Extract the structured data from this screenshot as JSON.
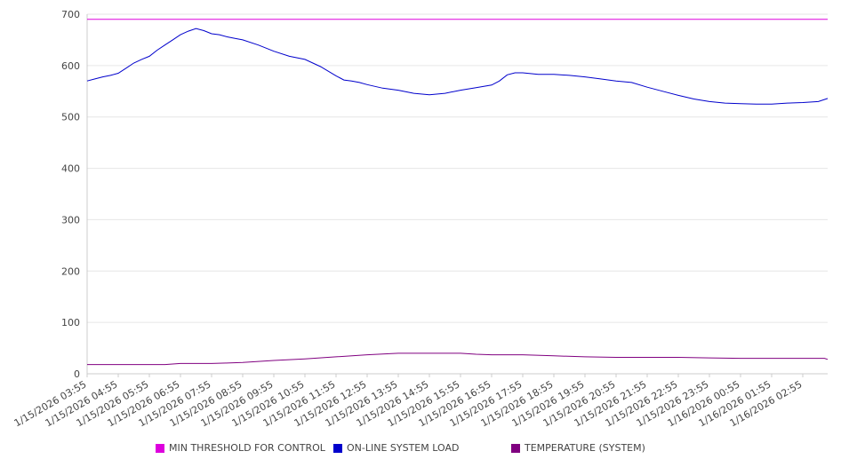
{
  "chart_data": {
    "type": "line",
    "ylim": [
      0,
      700
    ],
    "yticks": [
      0,
      100,
      200,
      300,
      400,
      500,
      600,
      700
    ],
    "x_tick_labels": [
      "1/15/2026 03:55",
      "1/15/2026 04:55",
      "1/15/2026 05:55",
      "1/15/2026 06:55",
      "1/15/2026 07:55",
      "1/15/2026 08:55",
      "1/15/2026 09:55",
      "1/15/2026 10:55",
      "1/15/2026 11:55",
      "1/15/2026 12:55",
      "1/15/2026 13:55",
      "1/15/2026 14:55",
      "1/15/2026 15:55",
      "1/15/2026 16:55",
      "1/15/2026 17:55",
      "1/15/2026 18:55",
      "1/15/2026 19:55",
      "1/15/2026 20:55",
      "1/15/2026 21:55",
      "1/15/2026 22:55",
      "1/15/2026 23:55",
      "1/16/2026 00:55",
      "1/16/2026 01:55",
      "1/16/2026 02:55"
    ],
    "x_range_hours": [
      0,
      23.8
    ],
    "grid": true,
    "legend_position": "bottom",
    "series": [
      {
        "name": "MIN THRESHOLD FOR CONTROL",
        "color": "#dd00dd",
        "x": [
          0,
          23.8
        ],
        "y": [
          690,
          690
        ]
      },
      {
        "name": "ON-LINE SYSTEM LOAD",
        "color": "#0000cc",
        "x": [
          0,
          0.25,
          0.5,
          0.75,
          1.0,
          1.25,
          1.5,
          1.75,
          2.0,
          2.25,
          2.5,
          2.75,
          3.0,
          3.25,
          3.5,
          3.75,
          4.0,
          4.25,
          4.5,
          4.75,
          5.0,
          5.5,
          6.0,
          6.5,
          7.0,
          7.5,
          8.0,
          8.25,
          8.5,
          8.75,
          9.0,
          9.5,
          10.0,
          10.5,
          11.0,
          11.5,
          12.0,
          12.5,
          13.0,
          13.25,
          13.5,
          13.75,
          14.0,
          14.5,
          15.0,
          15.5,
          16.0,
          16.5,
          17.0,
          17.5,
          18.0,
          18.5,
          19.0,
          19.5,
          20.0,
          20.5,
          21.0,
          21.5,
          22.0,
          22.5,
          23.0,
          23.5,
          23.8
        ],
        "y": [
          570,
          574,
          578,
          581,
          585,
          595,
          605,
          612,
          618,
          630,
          640,
          650,
          660,
          667,
          672,
          668,
          662,
          660,
          656,
          653,
          650,
          640,
          628,
          618,
          612,
          598,
          580,
          572,
          570,
          567,
          563,
          556,
          552,
          546,
          543,
          546,
          552,
          557,
          562,
          570,
          582,
          586,
          586,
          583,
          583,
          581,
          578,
          574,
          570,
          567,
          558,
          550,
          542,
          535,
          530,
          527,
          526,
          525,
          525,
          527,
          528,
          530,
          536
        ]
      },
      {
        "name": "TEMPERATURE (SYSTEM)",
        "color": "#800080",
        "x": [
          0,
          1,
          2,
          2.5,
          3,
          4,
          4.5,
          5,
          6,
          7,
          8,
          9,
          10,
          11,
          12,
          12.5,
          13,
          14,
          15,
          16,
          17,
          18,
          19,
          20,
          21,
          22,
          23,
          23.7,
          23.8
        ],
        "y": [
          18,
          18,
          18,
          18,
          20,
          20,
          21,
          22,
          26,
          29,
          33,
          37,
          40,
          40,
          40,
          38,
          37,
          37,
          35,
          33,
          32,
          32,
          32,
          31,
          30,
          30,
          30,
          30,
          28
        ]
      }
    ]
  }
}
